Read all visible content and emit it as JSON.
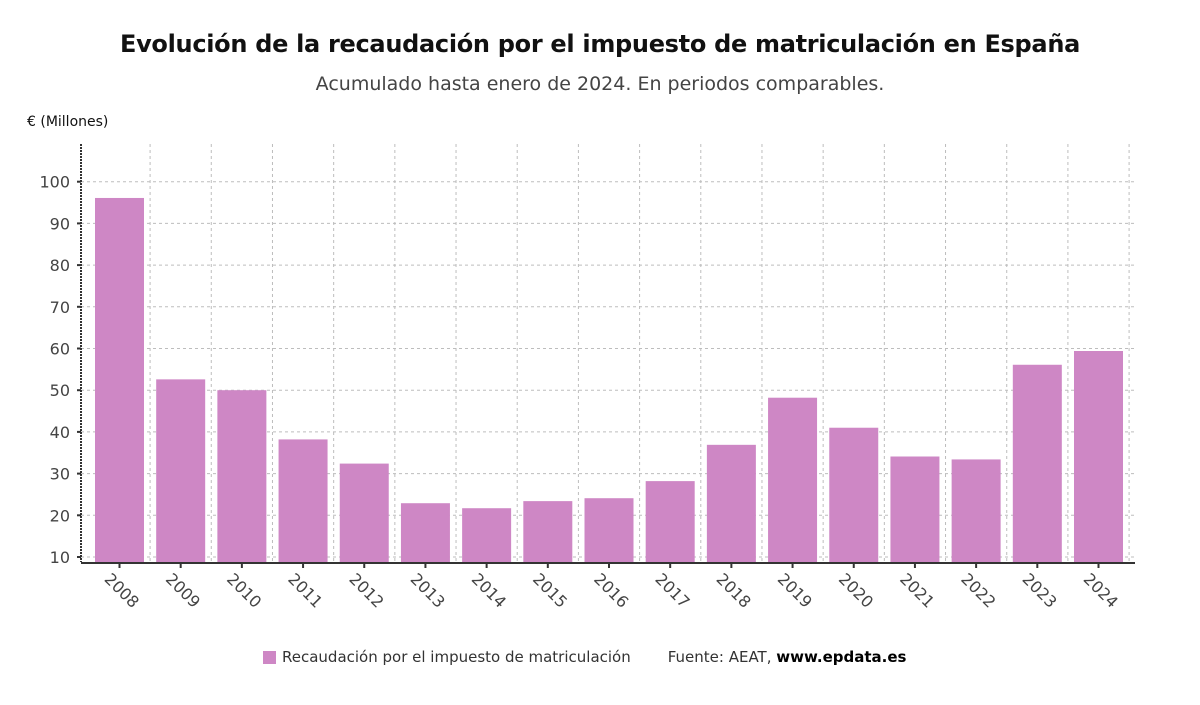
{
  "chart_data": {
    "type": "bar",
    "title": "Evolución de la recaudación por el impuesto de matriculación en España",
    "subtitle": "Acumulado hasta enero de 2024. En periodos comparables.",
    "xlabel": "",
    "ylabel": "€ (Millones)",
    "ylim": [
      8.8,
      108
    ],
    "yticks": [
      10,
      20,
      30,
      40,
      50,
      60,
      70,
      80,
      90,
      100
    ],
    "grid": true,
    "categories": [
      "2008",
      "2009",
      "2010",
      "2011",
      "2012",
      "2013",
      "2014",
      "2015",
      "2016",
      "2017",
      "2018",
      "2019",
      "2020",
      "2021",
      "2022",
      "2023",
      "2024"
    ],
    "series": [
      {
        "name": "Recaudación por el impuesto de matriculación",
        "color": "#CE87C5",
        "values": [
          96.1,
          52.6,
          50.0,
          38.2,
          32.4,
          22.9,
          21.7,
          23.4,
          24.1,
          28.2,
          36.9,
          48.2,
          41.0,
          34.1,
          33.4,
          56.1,
          59.4
        ]
      }
    ],
    "legend_position": "bottom",
    "source_prefix": "Fuente: AEAT,",
    "source_site": "www.epdata.es"
  }
}
